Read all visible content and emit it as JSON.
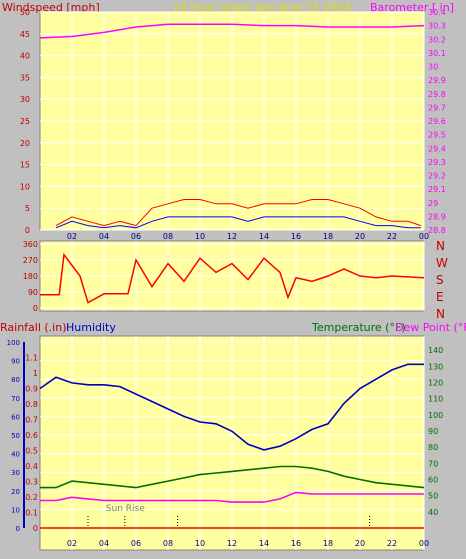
{
  "colors": {
    "background": "#c0c0c0",
    "plot_bg": "#ffffa0",
    "grid": "#ffffff",
    "wind_speed": "#ff0000",
    "wind_avg": "#0000ff",
    "wind_low": "#008000",
    "barometer": "#ff00ff",
    "humidity": "#0000c0",
    "temperature": "#007000",
    "dew_point": "#ff00ff",
    "rain": "#ff0000",
    "title": "#e0e000",
    "outer_axis_red": "#c00000",
    "outer_axis_blue": "#0000c0"
  },
  "header": {
    "left_label": "Windspeed [mph]",
    "title": "24 hour graph day   June 15 2024",
    "right_label": "Barometer [ in]"
  },
  "compass_labels": [
    "N",
    "W",
    "S",
    "E",
    "N"
  ],
  "bottom_labels": {
    "rainfall": "Rainfall (.in)",
    "humidity": "Humidity",
    "temperature": "Temperature (°F)",
    "dew_point": "Dew Point (°F)",
    "sunrise": "Sun Rise"
  },
  "x_ticks": [
    "02",
    "04",
    "06",
    "08",
    "10",
    "12",
    "14",
    "16",
    "18",
    "20",
    "22",
    "00"
  ],
  "chart_data": [
    {
      "type": "line",
      "name": "wind",
      "x_unit": "hour",
      "xlim": [
        0,
        24
      ],
      "ylim": [
        0,
        50
      ],
      "y_ticks": [
        0,
        5,
        10,
        15,
        20,
        25,
        30,
        35,
        40,
        45,
        50
      ],
      "ylim_right": [
        28.8,
        30.4
      ],
      "y_ticks_right": [
        "28.8",
        "28.9",
        "29",
        "29.1",
        "29.2",
        "29.3",
        "29.4",
        "29.5",
        "29.6",
        "29.7",
        "29.8",
        "29.9",
        "30",
        "30.1",
        "30.2",
        "30.3",
        "30.4"
      ],
      "series": [
        {
          "name": "Windspeed",
          "color": "#ff0000",
          "x": [
            1,
            2,
            3,
            4,
            5,
            6,
            7,
            8,
            9,
            10,
            11,
            12,
            13,
            14,
            15,
            16,
            17,
            18,
            19,
            20,
            21,
            22,
            23,
            23.8
          ],
          "values": [
            1,
            3,
            2,
            1,
            2,
            1,
            5,
            6,
            7,
            7,
            6,
            6,
            5,
            6,
            6,
            6,
            7,
            7,
            6,
            5,
            3,
            2,
            2,
            1
          ]
        },
        {
          "name": "Wind avg",
          "color": "#0000ff",
          "x": [
            1,
            2,
            3,
            4,
            5,
            6,
            7,
            8,
            9,
            10,
            11,
            12,
            13,
            14,
            15,
            16,
            17,
            18,
            19,
            20,
            21,
            22,
            23,
            23.8
          ],
          "values": [
            0.5,
            2,
            1,
            0.5,
            1,
            0.5,
            2,
            3,
            3,
            3,
            3,
            3,
            2,
            3,
            3,
            3,
            3,
            3,
            3,
            2,
            1,
            1,
            0.5,
            0.5
          ]
        },
        {
          "name": "Barometer",
          "color": "#ff00ff",
          "axis": "right",
          "x": [
            0,
            2,
            4,
            6,
            8,
            10,
            12,
            14,
            16,
            18,
            20,
            22,
            24
          ],
          "values": [
            30.21,
            30.22,
            30.25,
            30.29,
            30.31,
            30.31,
            30.31,
            30.3,
            30.3,
            30.29,
            30.29,
            30.29,
            30.3
          ]
        }
      ]
    },
    {
      "type": "line",
      "name": "wind_direction",
      "x_unit": "hour",
      "xlim": [
        0,
        24
      ],
      "ylim": [
        0,
        360
      ],
      "y_ticks": [
        0,
        90,
        180,
        270,
        360
      ],
      "series": [
        {
          "name": "Wind direction",
          "color": "#ff0000",
          "x": [
            0,
            1.2,
            1.5,
            2.5,
            3,
            4,
            5.5,
            6,
            7,
            8,
            9,
            10,
            11,
            12,
            13,
            14,
            15,
            15.5,
            16,
            17,
            18,
            19,
            20,
            21,
            22,
            23,
            24
          ],
          "values": [
            75,
            75,
            300,
            180,
            30,
            80,
            80,
            270,
            120,
            250,
            150,
            280,
            200,
            250,
            160,
            280,
            200,
            60,
            170,
            150,
            180,
            220,
            180,
            170,
            180,
            175,
            170
          ]
        }
      ]
    },
    {
      "type": "line",
      "name": "temperature_humidity",
      "x_unit": "hour",
      "xlim": [
        0,
        24
      ],
      "ylim_left_rain": [
        0,
        1.2
      ],
      "y_ticks_rain": [
        "0",
        "0.1",
        "0.2",
        "0.3",
        "0.4",
        "0.5",
        "0.6",
        "0.7",
        "0.8",
        "0.9",
        "1",
        "1.1"
      ],
      "ylim_left_humidity": [
        0,
        100
      ],
      "y_ticks_humidity": [
        0,
        10,
        20,
        30,
        40,
        50,
        60,
        70,
        80,
        90,
        100
      ],
      "ylim_right": [
        30,
        145
      ],
      "y_ticks_right": [
        40,
        50,
        60,
        70,
        80,
        90,
        100,
        110,
        120,
        130,
        140
      ],
      "sunrise_hour": 5.3,
      "markers": [
        3,
        5.3,
        8.6,
        20.6
      ],
      "series": [
        {
          "name": "Humidity",
          "color": "#0000c0",
          "axis": "humidity",
          "x": [
            0,
            1,
            2,
            3,
            4,
            5,
            6,
            7,
            8,
            9,
            10,
            11,
            12,
            13,
            14,
            15,
            16,
            17,
            18,
            19,
            20,
            21,
            22,
            23,
            24
          ],
          "values": [
            75,
            81,
            78,
            77,
            77,
            76,
            72,
            68,
            64,
            60,
            57,
            56,
            52,
            45,
            42,
            44,
            48,
            53,
            56,
            67,
            75,
            80,
            85,
            88,
            88
          ]
        },
        {
          "name": "Temperature",
          "color": "#007000",
          "axis": "right",
          "x": [
            0,
            1,
            2,
            3,
            4,
            5,
            6,
            7,
            8,
            9,
            10,
            11,
            12,
            13,
            14,
            15,
            16,
            17,
            18,
            19,
            20,
            21,
            22,
            23,
            24
          ],
          "values": [
            55,
            55,
            59,
            58,
            57,
            56,
            55,
            57,
            59,
            61,
            63,
            64,
            65,
            66,
            67,
            68,
            68,
            67,
            65,
            62,
            60,
            58,
            57,
            56,
            55
          ]
        },
        {
          "name": "Dew Point",
          "color": "#ff00ff",
          "axis": "right",
          "x": [
            0,
            1,
            2,
            3,
            4,
            5,
            6,
            7,
            8,
            9,
            10,
            11,
            12,
            13,
            14,
            15,
            16,
            17,
            18,
            19,
            20,
            21,
            22,
            23,
            24
          ],
          "values": [
            47,
            47,
            49,
            48,
            47,
            47,
            47,
            47,
            47,
            47,
            47,
            47,
            46,
            46,
            46,
            48,
            52,
            51,
            51,
            51,
            51,
            51,
            51,
            51,
            51
          ]
        },
        {
          "name": "Rainfall",
          "color": "#ff0000",
          "axis": "rain",
          "x": [
            0,
            24
          ],
          "values": [
            0,
            0
          ]
        }
      ]
    }
  ]
}
